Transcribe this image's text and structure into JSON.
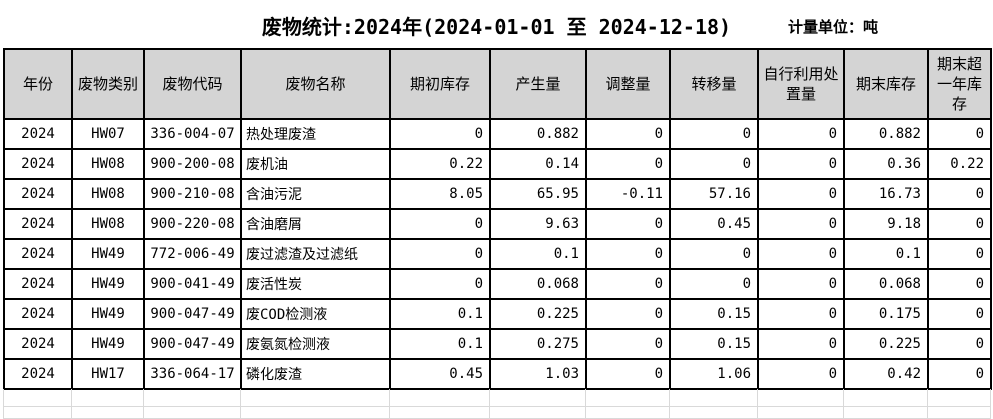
{
  "title": "废物统计:2024年(2024-01-01 至 2024-12-18)",
  "unit_label": "计量单位：吨",
  "table": {
    "headers": [
      "年份",
      "废物类别",
      "废物代码",
      "废物名称",
      "期初库存",
      "产生量",
      "调整量",
      "转移量",
      "自行利用处置量",
      "期末库存",
      "期末超一年库存"
    ],
    "rows": [
      [
        "2024",
        "HW07",
        "336-004-07",
        "热处理废渣",
        "0",
        "0.882",
        "0",
        "0",
        "0",
        "0.882",
        "0"
      ],
      [
        "2024",
        "HW08",
        "900-200-08",
        "废机油",
        "0.22",
        "0.14",
        "0",
        "0",
        "0",
        "0.36",
        "0.22"
      ],
      [
        "2024",
        "HW08",
        "900-210-08",
        "含油污泥",
        "8.05",
        "65.95",
        "-0.11",
        "57.16",
        "0",
        "16.73",
        "0"
      ],
      [
        "2024",
        "HW08",
        "900-220-08",
        "含油磨屑",
        "0",
        "9.63",
        "0",
        "0.45",
        "0",
        "9.18",
        "0"
      ],
      [
        "2024",
        "HW49",
        "772-006-49",
        "废过滤渣及过滤纸",
        "0",
        "0.1",
        "0",
        "0",
        "0",
        "0.1",
        "0"
      ],
      [
        "2024",
        "HW49",
        "900-041-49",
        "废活性炭",
        "0",
        "0.068",
        "0",
        "0",
        "0",
        "0.068",
        "0"
      ],
      [
        "2024",
        "HW49",
        "900-047-49",
        "废COD检测液",
        "0.1",
        "0.225",
        "0",
        "0.15",
        "0",
        "0.175",
        "0"
      ],
      [
        "2024",
        "HW49",
        "900-047-49",
        "废氨氮检测液",
        "0.1",
        "0.275",
        "0",
        "0.15",
        "0",
        "0.225",
        "0"
      ],
      [
        "2024",
        "HW17",
        "336-064-17",
        "磷化废渣",
        "0.45",
        "1.03",
        "0",
        "1.06",
        "0",
        "0.42",
        "0"
      ]
    ]
  },
  "colors": {
    "header_bg": "#d4d4d4",
    "table_border": "#000000",
    "empty_gridline": "#d9d9d9"
  }
}
